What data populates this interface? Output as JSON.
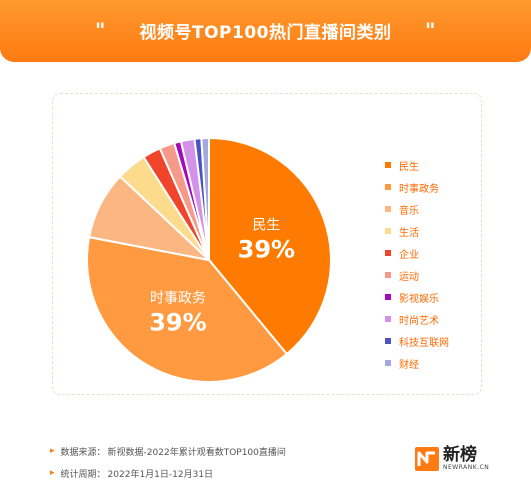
{
  "header": {
    "title": "视频号TOP100热门直播间类别",
    "quote_left": "\"",
    "quote_right": "\""
  },
  "chart_data": {
    "type": "pie",
    "title": "视频号TOP100热门直播间类别",
    "slices": [
      {
        "label": "民生",
        "value": 39,
        "color": "#ff7a00"
      },
      {
        "label": "时事政务",
        "value": 39,
        "color": "#ff9a40"
      },
      {
        "label": "音乐",
        "value": 9,
        "color": "#fbb682"
      },
      {
        "label": "生活",
        "value": 4,
        "color": "#fcdc8c"
      },
      {
        "label": "企业",
        "value": 2.4,
        "color": "#f0442b"
      },
      {
        "label": "运动",
        "value": 2,
        "color": "#f59a8a"
      },
      {
        "label": "影视娱乐",
        "value": 0.9,
        "color": "#a30ab8"
      },
      {
        "label": "时尚艺术",
        "value": 1.8,
        "color": "#d392e8"
      },
      {
        "label": "科技互联网",
        "value": 0.9,
        "color": "#4a55c2"
      },
      {
        "label": "财经",
        "value": 1,
        "color": "#a3a9de"
      }
    ],
    "data_labels": [
      {
        "name": "民生",
        "value": "39%"
      },
      {
        "name": "时事政务",
        "value": "39%"
      }
    ],
    "legend_position": "right"
  },
  "footer": {
    "source_label": "数据来源：",
    "source_value": "新视数据-2022年累计观看数TOP100直播间",
    "period_label": "统计周期：",
    "period_value": "2022年1月1日-12月31日"
  },
  "logo": {
    "name_cn": "新榜",
    "name_en": "NEWRANK.CN"
  }
}
